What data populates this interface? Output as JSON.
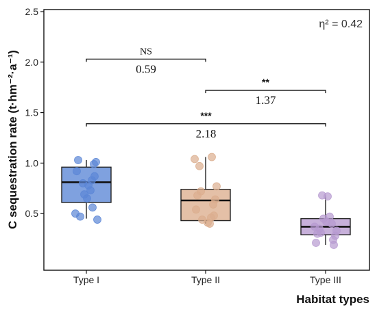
{
  "chart_data": {
    "type": "box",
    "xlabel": "Habitat types",
    "ylabel": "C sequestration rate (t·hm⁻²·a⁻¹)",
    "ylim": [
      0,
      2.5
    ],
    "yticks": [
      "0.5",
      "1.0",
      "1.5",
      "2.0",
      "2.5"
    ],
    "effect_size": "η² = 0.42",
    "categories": [
      "Type I",
      "Type II",
      "Type III"
    ],
    "series": [
      {
        "color": "#5b86d6",
        "box": {
          "q1": 0.61,
          "median": 0.81,
          "q3": 0.96,
          "whisker_low": 0.45,
          "whisker_high": 1.03
        },
        "points": [
          1.03,
          1.01,
          0.99,
          0.92,
          0.87,
          0.83,
          0.8,
          0.78,
          0.73,
          0.69,
          0.65,
          0.56,
          0.5,
          0.47,
          0.44
        ]
      },
      {
        "color": "#dcae8e",
        "box": {
          "q1": 0.43,
          "median": 0.63,
          "q3": 0.74,
          "whisker_low": 0.4,
          "whisker_high": 1.06
        },
        "points": [
          1.06,
          1.04,
          0.97,
          0.77,
          0.72,
          0.68,
          0.64,
          0.59,
          0.54,
          0.48,
          0.46,
          0.44,
          0.41,
          0.4
        ]
      },
      {
        "color": "#b79ad0",
        "box": {
          "q1": 0.29,
          "median": 0.37,
          "q3": 0.45,
          "whisker_low": 0.19,
          "whisker_high": 0.68
        },
        "points": [
          0.68,
          0.67,
          0.47,
          0.45,
          0.42,
          0.4,
          0.37,
          0.35,
          0.33,
          0.31,
          0.3,
          0.28,
          0.24,
          0.21,
          0.19
        ]
      }
    ],
    "comparisons": [
      {
        "from": 0,
        "to": 1,
        "y": 2.03,
        "label": "NS",
        "value": "0.59"
      },
      {
        "from": 1,
        "to": 2,
        "y": 1.72,
        "label": "**",
        "value": "1.37"
      },
      {
        "from": 0,
        "to": 2,
        "y": 1.39,
        "label": "***",
        "value": "2.18"
      }
    ]
  }
}
